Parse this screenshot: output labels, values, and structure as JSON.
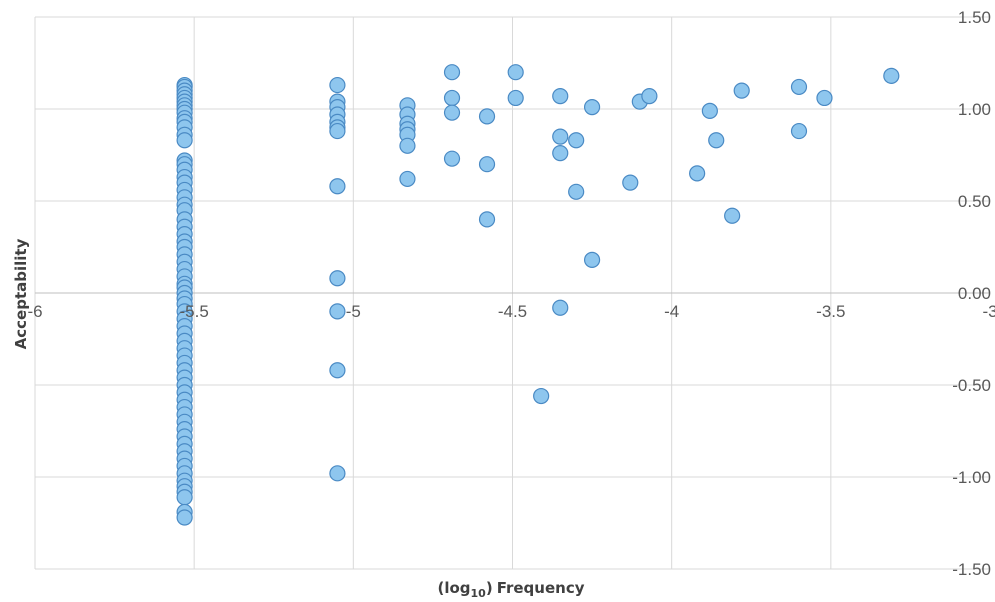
{
  "chart_data": {
    "type": "scatter",
    "title": "",
    "xlabel": "Frequency",
    "xlabel_prefix": "(log",
    "xlabel_sub": "10",
    "xlabel_suffix": ")",
    "ylabel": "Acceptability",
    "xlim": [
      -6,
      -3
    ],
    "ylim": [
      -1.5,
      1.5
    ],
    "xticks": [
      "-6",
      "-5.5",
      "-5",
      "-4.5",
      "-4",
      "-3.5",
      "-3"
    ],
    "yticks": [
      "1.50",
      "1.00",
      "0.50",
      "0.00",
      "-0.50",
      "-1.00",
      "-1.50"
    ],
    "grid": true,
    "y_axis_side": "right",
    "colors": {
      "marker_fill": "#8ec6ee",
      "marker_edge": "#4a8ac4",
      "grid": "#d9d9d9"
    },
    "series": [
      {
        "points": [
          [
            -5.53,
            1.13
          ],
          [
            -5.53,
            1.12
          ],
          [
            -5.53,
            1.1
          ],
          [
            -5.53,
            1.08
          ],
          [
            -5.53,
            1.06
          ],
          [
            -5.53,
            1.04
          ],
          [
            -5.53,
            1.02
          ],
          [
            -5.53,
            1.0
          ],
          [
            -5.53,
            0.98
          ],
          [
            -5.53,
            0.95
          ],
          [
            -5.53,
            0.93
          ],
          [
            -5.53,
            0.9
          ],
          [
            -5.53,
            0.86
          ],
          [
            -5.53,
            0.83
          ],
          [
            -5.53,
            0.72
          ],
          [
            -5.53,
            0.7
          ],
          [
            -5.53,
            0.67
          ],
          [
            -5.53,
            0.63
          ],
          [
            -5.53,
            0.6
          ],
          [
            -5.53,
            0.56
          ],
          [
            -5.53,
            0.52
          ],
          [
            -5.53,
            0.48
          ],
          [
            -5.53,
            0.45
          ],
          [
            -5.53,
            0.4
          ],
          [
            -5.53,
            0.36
          ],
          [
            -5.53,
            0.32
          ],
          [
            -5.53,
            0.28
          ],
          [
            -5.53,
            0.25
          ],
          [
            -5.53,
            0.21
          ],
          [
            -5.53,
            0.17
          ],
          [
            -5.53,
            0.13
          ],
          [
            -5.53,
            0.09
          ],
          [
            -5.53,
            0.05
          ],
          [
            -5.53,
            0.03
          ],
          [
            -5.53,
            0.0
          ],
          [
            -5.53,
            -0.03
          ],
          [
            -5.53,
            -0.06
          ],
          [
            -5.53,
            -0.1
          ],
          [
            -5.53,
            -0.14
          ],
          [
            -5.53,
            -0.18
          ],
          [
            -5.53,
            -0.22
          ],
          [
            -5.53,
            -0.26
          ],
          [
            -5.53,
            -0.3
          ],
          [
            -5.53,
            -0.34
          ],
          [
            -5.53,
            -0.38
          ],
          [
            -5.53,
            -0.42
          ],
          [
            -5.53,
            -0.46
          ],
          [
            -5.53,
            -0.5
          ],
          [
            -5.53,
            -0.54
          ],
          [
            -5.53,
            -0.58
          ],
          [
            -5.53,
            -0.62
          ],
          [
            -5.53,
            -0.66
          ],
          [
            -5.53,
            -0.7
          ],
          [
            -5.53,
            -0.74
          ],
          [
            -5.53,
            -0.78
          ],
          [
            -5.53,
            -0.82
          ],
          [
            -5.53,
            -0.86
          ],
          [
            -5.53,
            -0.9
          ],
          [
            -5.53,
            -0.94
          ],
          [
            -5.53,
            -0.98
          ],
          [
            -5.53,
            -1.02
          ],
          [
            -5.53,
            -1.05
          ],
          [
            -5.53,
            -1.08
          ],
          [
            -5.53,
            -1.11
          ],
          [
            -5.53,
            -1.19
          ],
          [
            -5.53,
            -1.22
          ],
          [
            -5.05,
            1.13
          ],
          [
            -5.05,
            1.04
          ],
          [
            -5.05,
            1.01
          ],
          [
            -5.05,
            0.97
          ],
          [
            -5.05,
            0.93
          ],
          [
            -5.05,
            0.9
          ],
          [
            -5.05,
            0.88
          ],
          [
            -5.05,
            0.58
          ],
          [
            -5.05,
            0.08
          ],
          [
            -5.05,
            -0.1
          ],
          [
            -5.05,
            -0.42
          ],
          [
            -5.05,
            -0.98
          ],
          [
            -4.83,
            1.02
          ],
          [
            -4.83,
            0.97
          ],
          [
            -4.83,
            0.92
          ],
          [
            -4.83,
            0.89
          ],
          [
            -4.83,
            0.86
          ],
          [
            -4.83,
            0.8
          ],
          [
            -4.83,
            0.62
          ],
          [
            -4.69,
            1.2
          ],
          [
            -4.69,
            1.06
          ],
          [
            -4.69,
            0.98
          ],
          [
            -4.69,
            0.73
          ],
          [
            -4.58,
            0.96
          ],
          [
            -4.58,
            0.7
          ],
          [
            -4.58,
            0.4
          ],
          [
            -4.49,
            1.2
          ],
          [
            -4.49,
            1.06
          ],
          [
            -4.41,
            -0.56
          ],
          [
            -4.35,
            1.07
          ],
          [
            -4.35,
            0.85
          ],
          [
            -4.35,
            0.76
          ],
          [
            -4.35,
            -0.08
          ],
          [
            -4.3,
            0.83
          ],
          [
            -4.3,
            0.55
          ],
          [
            -4.25,
            1.01
          ],
          [
            -4.25,
            0.18
          ],
          [
            -4.13,
            0.6
          ],
          [
            -4.1,
            1.04
          ],
          [
            -4.07,
            1.07
          ],
          [
            -3.92,
            0.65
          ],
          [
            -3.88,
            0.99
          ],
          [
            -3.86,
            0.83
          ],
          [
            -3.81,
            0.42
          ],
          [
            -3.78,
            1.1
          ],
          [
            -3.6,
            1.12
          ],
          [
            -3.6,
            0.88
          ],
          [
            -3.52,
            1.06
          ],
          [
            -3.31,
            1.18
          ]
        ]
      }
    ]
  }
}
